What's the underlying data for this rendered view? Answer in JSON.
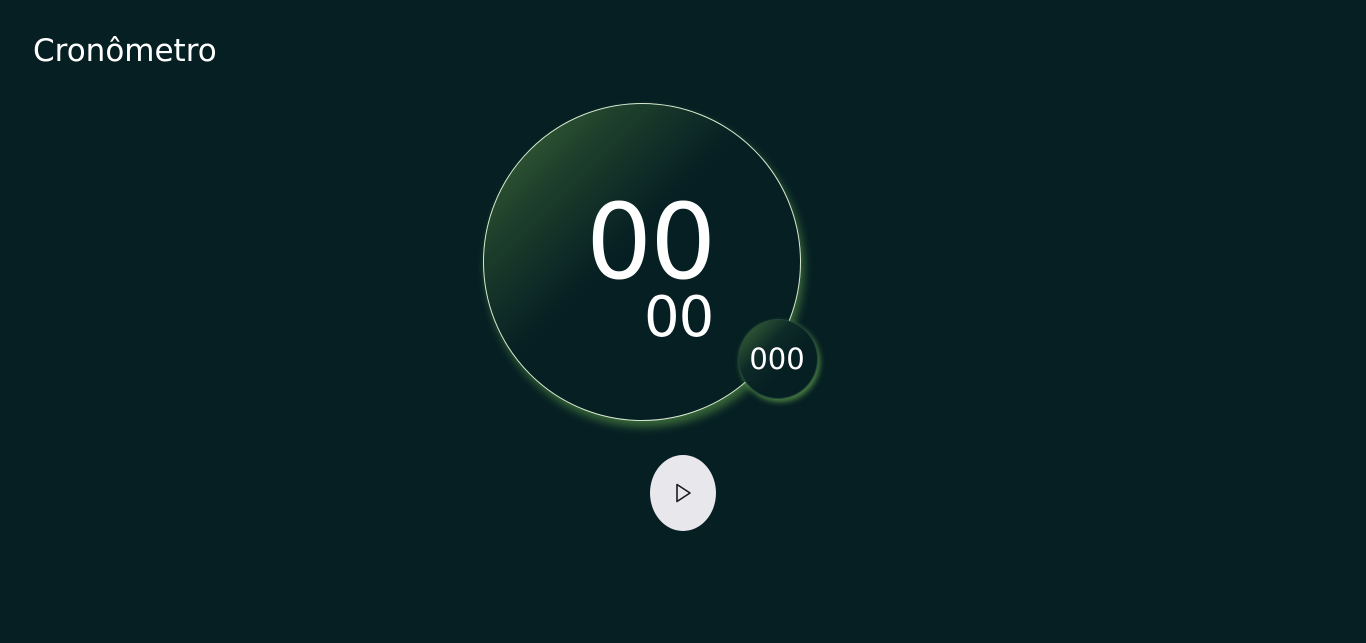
{
  "app": {
    "title": "Cronômetro"
  },
  "timer": {
    "seconds": "00",
    "minutes": "00",
    "milliseconds": "000"
  },
  "controls": {
    "play_icon": "play-icon"
  },
  "colors": {
    "background": "#061f23",
    "accent": "#76be54",
    "button": "#e8e8ec"
  }
}
